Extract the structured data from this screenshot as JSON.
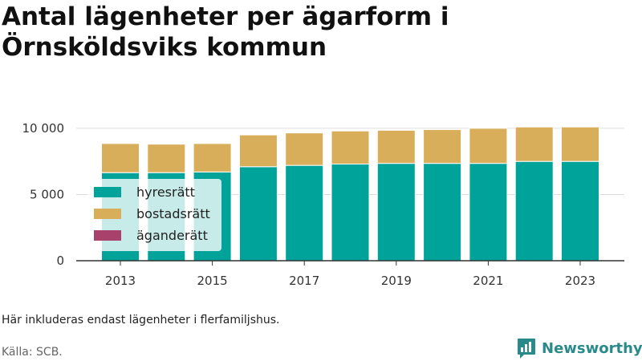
{
  "title": "Antal lägenheter per ägarform i Örnsköldsviks kommun",
  "note": "Här inkluderas endast lägenheter i flerfamiljshus.",
  "source": "Källa: SCB.",
  "brand": "Newsworthy",
  "colors": {
    "hyresratt": "#00a39a",
    "bostadsratt": "#d9ae5a",
    "aganderatt": "#a8416b",
    "grid": "#dddddd",
    "axis": "#333333",
    "brand": "#2a8a8a"
  },
  "chart_data": {
    "type": "bar",
    "stacked": true,
    "categories": [
      "2013",
      "2014",
      "2015",
      "2016",
      "2017",
      "2018",
      "2019",
      "2020",
      "2021",
      "2022",
      "2023"
    ],
    "x_tick_labels": [
      "2013",
      "2015",
      "2017",
      "2019",
      "2021",
      "2023"
    ],
    "y_ticks": [
      0,
      5000,
      10000
    ],
    "y_tick_labels": [
      "0",
      "5 000",
      "10 000"
    ],
    "ylim": [
      0,
      10600
    ],
    "grid": true,
    "legend_position": "bottom-left",
    "series": [
      {
        "name": "hyresrätt",
        "values": [
          6650,
          6650,
          6700,
          7100,
          7200,
          7300,
          7350,
          7350,
          7350,
          7500,
          7500
        ]
      },
      {
        "name": "bostadsrätt",
        "values": [
          2200,
          2150,
          2150,
          2400,
          2450,
          2500,
          2500,
          2550,
          2650,
          2600,
          2600
        ]
      },
      {
        "name": "äganderätt",
        "values": [
          0,
          0,
          0,
          0,
          0,
          0,
          0,
          0,
          0,
          0,
          0
        ]
      }
    ]
  }
}
